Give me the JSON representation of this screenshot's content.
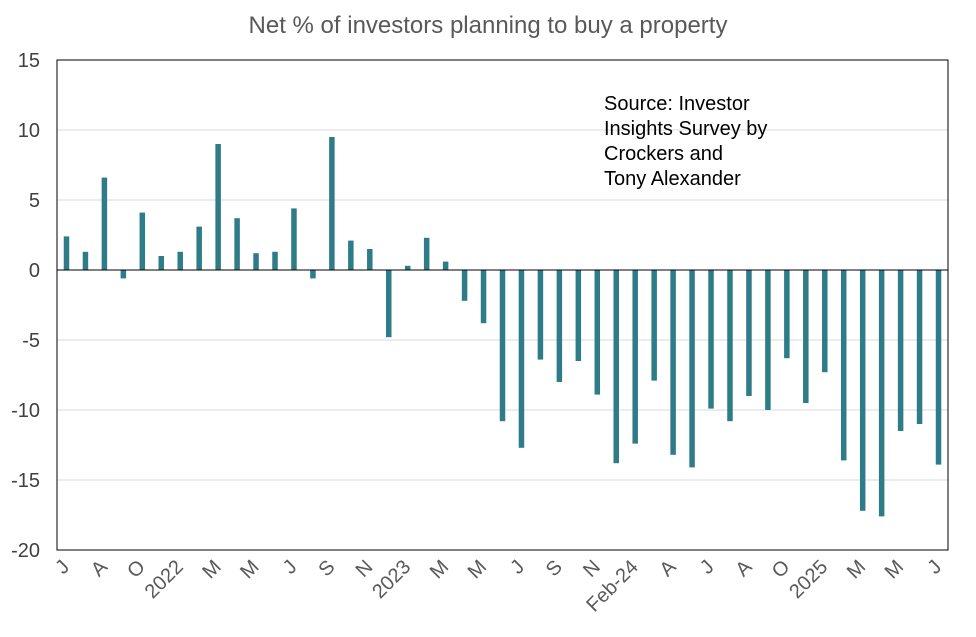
{
  "chart_data": {
    "type": "bar",
    "title": "Net % of investors planning to buy a property",
    "annotation": [
      "Source: Investor",
      "Insights Survey by",
      "Crockers and",
      "Tony Alexander"
    ],
    "ylim": [
      -20,
      15
    ],
    "yticks": [
      15,
      10,
      5,
      0,
      -5,
      -10,
      -15,
      -20
    ],
    "grid": true,
    "bar_color": "#2E7C87",
    "xlabels": [
      "J",
      "A",
      "O",
      "2022",
      "M",
      "M",
      "J",
      "S",
      "N",
      "2023",
      "M",
      "M",
      "J",
      "S",
      "N",
      "Feb-24",
      "A",
      "J",
      "A",
      "O",
      "2025",
      "M",
      "M",
      "J"
    ],
    "values": [
      2.4,
      1.3,
      6.6,
      -0.6,
      4.1,
      1.0,
      1.3,
      3.1,
      9.0,
      3.7,
      1.2,
      1.3,
      4.4,
      -0.6,
      9.5,
      2.1,
      1.5,
      -4.8,
      0.3,
      2.3,
      0.6,
      -2.2,
      -3.8,
      -10.8,
      -12.7,
      -6.4,
      -8.0,
      -6.5,
      -8.9,
      -13.8,
      -12.4,
      -7.9,
      -13.2,
      -14.1,
      -9.9,
      -10.8,
      -9.0,
      -10.0,
      -6.3,
      -9.5,
      -7.3,
      -13.6,
      -17.2,
      -17.6,
      -11.5,
      -11.0,
      -13.9
    ]
  }
}
